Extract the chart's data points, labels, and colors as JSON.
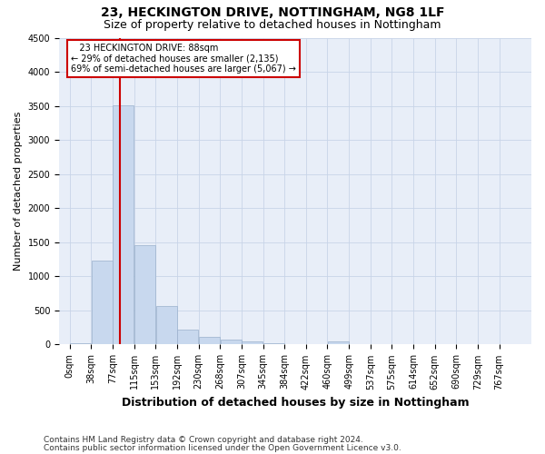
{
  "title": "23, HECKINGTON DRIVE, NOTTINGHAM, NG8 1LF",
  "subtitle": "Size of property relative to detached houses in Nottingham",
  "xlabel": "Distribution of detached houses by size in Nottingham",
  "ylabel": "Number of detached properties",
  "footnote1": "Contains HM Land Registry data © Crown copyright and database right 2024.",
  "footnote2": "Contains public sector information licensed under the Open Government Licence v3.0.",
  "annotation_line1": "   23 HECKINGTON DRIVE: 88sqm",
  "annotation_line2": "← 29% of detached houses are smaller (2,135)",
  "annotation_line3": "69% of semi-detached houses are larger (5,067) →",
  "property_size_sqm": 88,
  "bar_color": "#c8d8ee",
  "bar_edge_color": "#9ab0cc",
  "grid_color": "#c8d4e8",
  "vline_color": "#cc0000",
  "categories": [
    "0sqm",
    "38sqm",
    "77sqm",
    "115sqm",
    "153sqm",
    "192sqm",
    "230sqm",
    "268sqm",
    "307sqm",
    "345sqm",
    "384sqm",
    "422sqm",
    "460sqm",
    "499sqm",
    "537sqm",
    "575sqm",
    "614sqm",
    "652sqm",
    "690sqm",
    "729sqm",
    "767sqm"
  ],
  "bar_heights": [
    25,
    1230,
    3510,
    1460,
    565,
    220,
    110,
    75,
    50,
    25,
    12,
    8,
    45,
    0,
    0,
    0,
    0,
    0,
    0,
    0,
    0
  ],
  "ylim": [
    0,
    4500
  ],
  "yticks": [
    0,
    500,
    1000,
    1500,
    2000,
    2500,
    3000,
    3500,
    4000,
    4500
  ],
  "plot_bg_color": "#e8eef8",
  "title_fontsize": 10,
  "subtitle_fontsize": 9,
  "xlabel_fontsize": 9,
  "ylabel_fontsize": 8,
  "tick_fontsize": 7,
  "annotation_fontsize": 7,
  "footnote_fontsize": 6.5
}
